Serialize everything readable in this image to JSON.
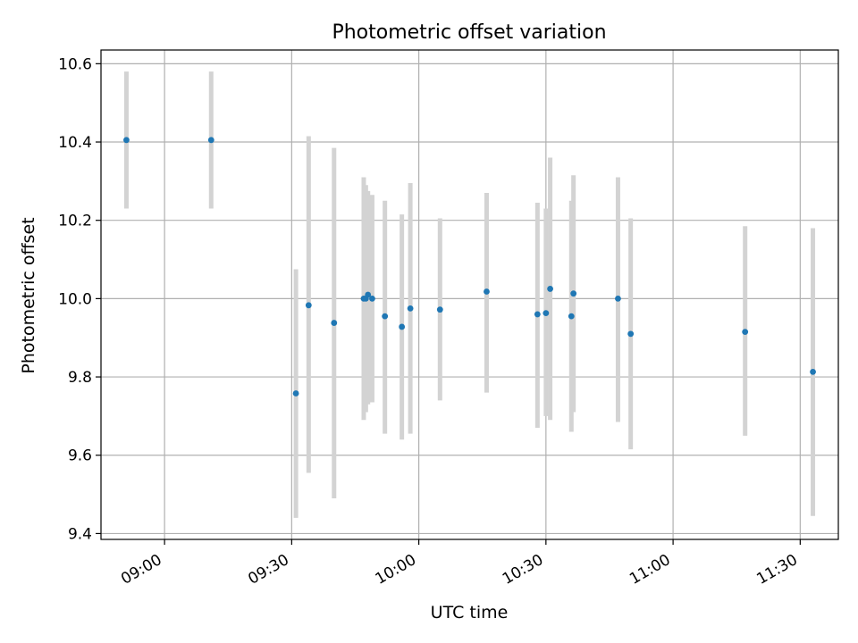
{
  "chart_data": {
    "type": "scatter",
    "title": "Photometric offset variation",
    "xlabel": "UTC time",
    "ylabel": "Photometric offset",
    "x_axis": {
      "kind": "time",
      "range": [
        "08:45",
        "11:39"
      ],
      "ticks": [
        "09:00",
        "09:30",
        "10:00",
        "10:30",
        "11:00",
        "11:30"
      ]
    },
    "y_axis": {
      "range": [
        9.385,
        10.635
      ],
      "ticks": [
        "9.4",
        "9.6",
        "9.8",
        "10.0",
        "10.2",
        "10.4",
        "10.6"
      ]
    },
    "grid": true,
    "colors": {
      "point": "#1f77b4",
      "errorbar": "#d3d3d3",
      "grid": "#b0b0b0"
    },
    "points": [
      {
        "x": "08:51",
        "y": 10.405,
        "lo": 10.23,
        "hi": 10.58
      },
      {
        "x": "09:11",
        "y": 10.405,
        "lo": 10.23,
        "hi": 10.58
      },
      {
        "x": "09:31",
        "y": 9.758,
        "lo": 9.44,
        "hi": 10.075
      },
      {
        "x": "09:34",
        "y": 9.983,
        "lo": 9.555,
        "hi": 10.415
      },
      {
        "x": "09:40",
        "y": 9.938,
        "lo": 9.49,
        "hi": 10.385
      },
      {
        "x": "09:47",
        "y": 10.0,
        "lo": 9.69,
        "hi": 10.31
      },
      {
        "x": "09:47.5",
        "y": 10.0,
        "lo": 9.71,
        "hi": 10.29
      },
      {
        "x": "09:48",
        "y": 10.01,
        "lo": 9.73,
        "hi": 10.275
      },
      {
        "x": "09:49",
        "y": 10.0,
        "lo": 9.735,
        "hi": 10.265
      },
      {
        "x": "09:52",
        "y": 9.955,
        "lo": 9.655,
        "hi": 10.25
      },
      {
        "x": "09:56",
        "y": 9.928,
        "lo": 9.64,
        "hi": 10.215
      },
      {
        "x": "09:58",
        "y": 9.975,
        "lo": 9.655,
        "hi": 10.295
      },
      {
        "x": "10:05",
        "y": 9.972,
        "lo": 9.74,
        "hi": 10.205
      },
      {
        "x": "10:16",
        "y": 10.018,
        "lo": 9.76,
        "hi": 10.27
      },
      {
        "x": "10:28",
        "y": 9.96,
        "lo": 9.67,
        "hi": 10.245
      },
      {
        "x": "10:30",
        "y": 9.963,
        "lo": 9.7,
        "hi": 10.23
      },
      {
        "x": "10:31",
        "y": 10.025,
        "lo": 9.69,
        "hi": 10.36
      },
      {
        "x": "10:36",
        "y": 9.955,
        "lo": 9.66,
        "hi": 10.25
      },
      {
        "x": "10:36.5",
        "y": 10.013,
        "lo": 9.71,
        "hi": 10.315
      },
      {
        "x": "10:47",
        "y": 10.0,
        "lo": 9.685,
        "hi": 10.31
      },
      {
        "x": "10:50",
        "y": 9.91,
        "lo": 9.615,
        "hi": 10.205
      },
      {
        "x": "11:17",
        "y": 9.915,
        "lo": 9.65,
        "hi": 10.185
      },
      {
        "x": "11:33",
        "y": 9.813,
        "lo": 9.445,
        "hi": 10.18
      }
    ]
  }
}
